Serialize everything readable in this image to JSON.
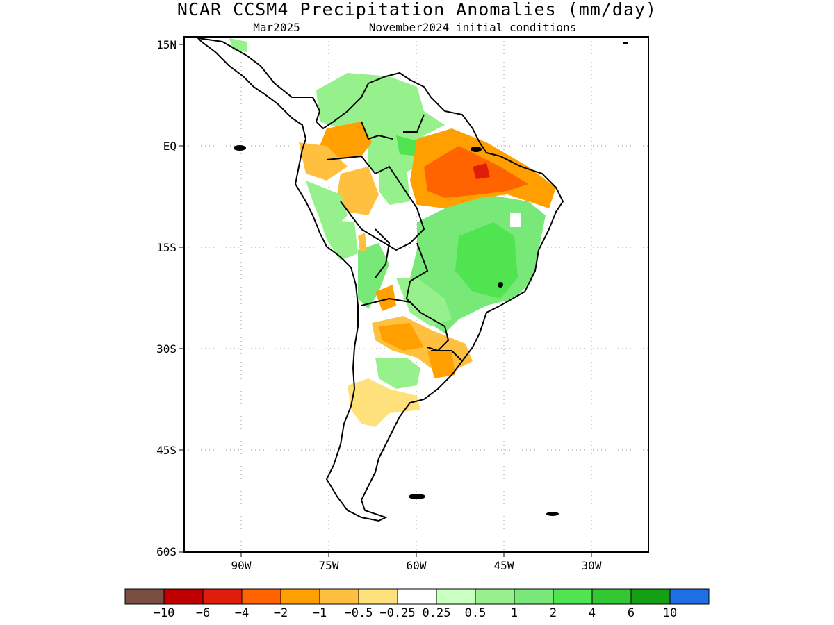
{
  "map": {
    "title": "NCAR_CCSM4 Precipitation Anomalies (mm/day)",
    "forecast_month": "Mar2025",
    "initial_conditions": "November2024 initial conditions",
    "lat_ticks": [
      "15N",
      "EQ",
      "15S",
      "30S",
      "45S",
      "60S"
    ],
    "lon_ticks": [
      "90W",
      "75W",
      "60W",
      "45W",
      "30W"
    ],
    "region": "South America",
    "colorbar": {
      "labels": [
        "−10",
        "−6",
        "−4",
        "−2",
        "−1",
        "−0.5",
        "−0.25",
        "0.25",
        "0.5",
        "1",
        "2",
        "4",
        "6",
        "10"
      ],
      "colors": [
        "#7a4e43",
        "#c00000",
        "#e01c0b",
        "#ff6400",
        "#ffa000",
        "#ffc040",
        "#ffe17c",
        "#ffffff",
        "#c9ffc0",
        "#96f08c",
        "#78e878",
        "#50e550",
        "#32c832",
        "#14a014",
        "#1e6ee6"
      ]
    }
  }
}
